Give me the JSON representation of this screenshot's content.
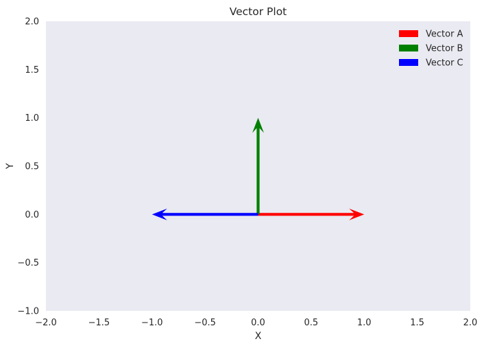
{
  "chart_data": {
    "type": "quiver",
    "title": "Vector Plot",
    "xlabel": "X",
    "ylabel": "Y",
    "xlim": [
      -2.0,
      2.0
    ],
    "ylim": [
      -1.0,
      2.0
    ],
    "xticks": [
      -2.0,
      -1.5,
      -1.0,
      -0.5,
      0.0,
      0.5,
      1.0,
      1.5,
      2.0
    ],
    "xtick_labels": [
      "−2.0",
      "−1.5",
      "−1.0",
      "−0.5",
      "0.0",
      "0.5",
      "1.0",
      "1.5",
      "2.0"
    ],
    "yticks": [
      -1.0,
      -0.5,
      0.0,
      0.5,
      1.0,
      1.5,
      2.0
    ],
    "ytick_labels": [
      "−1.0",
      "−0.5",
      "0.0",
      "0.5",
      "1.0",
      "1.5",
      "2.0"
    ],
    "grid": false,
    "background": "#eaeaf2",
    "legend_position": "top-right",
    "series": [
      {
        "name": "Vector A",
        "origin": [
          0,
          0
        ],
        "vector": [
          1,
          0
        ],
        "color": "#ff0000"
      },
      {
        "name": "Vector B",
        "origin": [
          0,
          0
        ],
        "vector": [
          0,
          1
        ],
        "color": "#008000"
      },
      {
        "name": "Vector C",
        "origin": [
          0,
          0
        ],
        "vector": [
          -1,
          0
        ],
        "color": "#0000ff"
      }
    ]
  }
}
